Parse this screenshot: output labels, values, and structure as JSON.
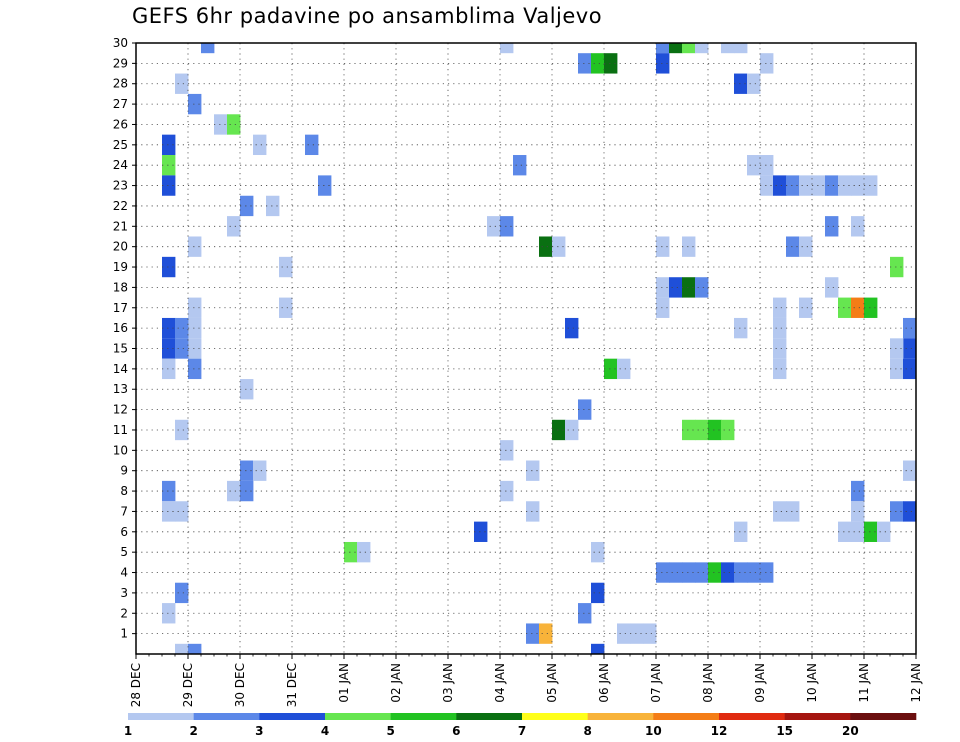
{
  "chart_data": {
    "type": "heatmap",
    "title": "GEFS 6hr padavine po ansamblima Valjevo",
    "xlabel": "",
    "ylabel": "",
    "x_tick_labels": [
      "28 DEC",
      "29 DEC",
      "30 DEC",
      "31 DEC",
      "01 JAN",
      "02 JAN",
      "03 JAN",
      "04 JAN",
      "05 JAN",
      "06 JAN",
      "07 JAN",
      "08 JAN",
      "09 JAN",
      "10 JAN",
      "11 JAN",
      "12 JAN"
    ],
    "x_range_days": [
      0,
      15
    ],
    "y_tick_labels": [
      "1",
      "2",
      "3",
      "4",
      "5",
      "6",
      "7",
      "8",
      "9",
      "10",
      "11",
      "12",
      "13",
      "14",
      "15",
      "16",
      "17",
      "18",
      "19",
      "20",
      "21",
      "22",
      "23",
      "24",
      "25",
      "26",
      "27",
      "28",
      "29",
      "30"
    ],
    "y_range": [
      0,
      30
    ],
    "time_step_hours": 6,
    "grid": true,
    "colorbar": {
      "placement": "bottom",
      "levels": [
        "1",
        "2",
        "3",
        "4",
        "5",
        "6",
        "7",
        "8",
        "10",
        "12",
        "15",
        "20"
      ],
      "colors": [
        "#b4c8f0",
        "#5c88e8",
        "#1f4fd8",
        "#66e650",
        "#22c322",
        "#0a7012",
        "#ffff1a",
        "#f8b33a",
        "#f47d16",
        "#e02a10",
        "#a51510",
        "#6b0f0f"
      ]
    },
    "cells": [
      {
        "t": 5,
        "m": 30,
        "c": 2
      },
      {
        "t": 28,
        "m": 30,
        "c": 1
      },
      {
        "t": 40,
        "m": 30,
        "c": 2
      },
      {
        "t": 41,
        "m": 30,
        "c": 6
      },
      {
        "t": 42,
        "m": 30,
        "c": 4
      },
      {
        "t": 43,
        "m": 30,
        "c": 1
      },
      {
        "t": 45,
        "m": 30,
        "c": 1
      },
      {
        "t": 46,
        "m": 30,
        "c": 1
      },
      {
        "t": 34,
        "m": 29,
        "c": 2
      },
      {
        "t": 35,
        "m": 29,
        "c": 5
      },
      {
        "t": 36,
        "m": 29,
        "c": 6
      },
      {
        "t": 40,
        "m": 29,
        "c": 3
      },
      {
        "t": 48,
        "m": 29,
        "c": 1
      },
      {
        "t": 3,
        "m": 28,
        "c": 1
      },
      {
        "t": 46,
        "m": 28,
        "c": 3
      },
      {
        "t": 47,
        "m": 28,
        "c": 1
      },
      {
        "t": 4,
        "m": 27,
        "c": 2
      },
      {
        "t": 6,
        "m": 26,
        "c": 1
      },
      {
        "t": 7,
        "m": 26,
        "c": 4
      },
      {
        "t": 2,
        "m": 25,
        "c": 3
      },
      {
        "t": 9,
        "m": 25,
        "c": 1
      },
      {
        "t": 13,
        "m": 25,
        "c": 2
      },
      {
        "t": 2,
        "m": 24,
        "c": 4
      },
      {
        "t": 29,
        "m": 24,
        "c": 2
      },
      {
        "t": 47,
        "m": 24,
        "c": 1
      },
      {
        "t": 48,
        "m": 24,
        "c": 1
      },
      {
        "t": 2,
        "m": 23,
        "c": 3
      },
      {
        "t": 14,
        "m": 23,
        "c": 2
      },
      {
        "t": 48,
        "m": 23,
        "c": 1
      },
      {
        "t": 49,
        "m": 23,
        "c": 3
      },
      {
        "t": 50,
        "m": 23,
        "c": 2
      },
      {
        "t": 51,
        "m": 23,
        "c": 1
      },
      {
        "t": 52,
        "m": 23,
        "c": 1
      },
      {
        "t": 53,
        "m": 23,
        "c": 2
      },
      {
        "t": 54,
        "m": 23,
        "c": 1
      },
      {
        "t": 55,
        "m": 23,
        "c": 1
      },
      {
        "t": 56,
        "m": 23,
        "c": 1
      },
      {
        "t": 8,
        "m": 22,
        "c": 2
      },
      {
        "t": 10,
        "m": 22,
        "c": 1
      },
      {
        "t": 7,
        "m": 21,
        "c": 1
      },
      {
        "t": 27,
        "m": 21,
        "c": 1
      },
      {
        "t": 28,
        "m": 21,
        "c": 2
      },
      {
        "t": 53,
        "m": 21,
        "c": 2
      },
      {
        "t": 55,
        "m": 21,
        "c": 1
      },
      {
        "t": 4,
        "m": 20,
        "c": 1
      },
      {
        "t": 31,
        "m": 20,
        "c": 6
      },
      {
        "t": 32,
        "m": 20,
        "c": 1
      },
      {
        "t": 40,
        "m": 20,
        "c": 1
      },
      {
        "t": 42,
        "m": 20,
        "c": 1
      },
      {
        "t": 50,
        "m": 20,
        "c": 2
      },
      {
        "t": 51,
        "m": 20,
        "c": 1
      },
      {
        "t": 2,
        "m": 19,
        "c": 3
      },
      {
        "t": 11,
        "m": 19,
        "c": 1
      },
      {
        "t": 58,
        "m": 19,
        "c": 4
      },
      {
        "t": 40,
        "m": 18,
        "c": 1
      },
      {
        "t": 41,
        "m": 18,
        "c": 3
      },
      {
        "t": 42,
        "m": 18,
        "c": 6
      },
      {
        "t": 43,
        "m": 18,
        "c": 2
      },
      {
        "t": 53,
        "m": 18,
        "c": 1
      },
      {
        "t": 4,
        "m": 17,
        "c": 1
      },
      {
        "t": 11,
        "m": 17,
        "c": 1
      },
      {
        "t": 40,
        "m": 17,
        "c": 1
      },
      {
        "t": 49,
        "m": 17,
        "c": 1
      },
      {
        "t": 51,
        "m": 17,
        "c": 1
      },
      {
        "t": 54,
        "m": 17,
        "c": 4
      },
      {
        "t": 55,
        "m": 17,
        "c": 9
      },
      {
        "t": 56,
        "m": 17,
        "c": 5
      },
      {
        "t": 4,
        "m": 16,
        "c": 1
      },
      {
        "t": 49,
        "m": 16,
        "c": 1
      },
      {
        "t": 46,
        "m": 16,
        "c": 1
      },
      {
        "t": 59,
        "m": 16,
        "c": 2
      },
      {
        "t": 2,
        "m": 16,
        "c": 3
      },
      {
        "t": 3,
        "m": 16,
        "c": 2
      },
      {
        "t": 4,
        "m": 15,
        "c": 1
      },
      {
        "t": 2,
        "m": 15,
        "c": 3
      },
      {
        "t": 3,
        "m": 15,
        "c": 2
      },
      {
        "t": 33,
        "m": 16,
        "c": 3
      },
      {
        "t": 49,
        "m": 15,
        "c": 1
      },
      {
        "t": 59,
        "m": 15,
        "c": 3
      },
      {
        "t": 58,
        "m": 15,
        "c": 1
      },
      {
        "t": 2,
        "m": 14,
        "c": 1
      },
      {
        "t": 4,
        "m": 14,
        "c": 2
      },
      {
        "t": 36,
        "m": 14,
        "c": 5
      },
      {
        "t": 37,
        "m": 14,
        "c": 1
      },
      {
        "t": 49,
        "m": 14,
        "c": 1
      },
      {
        "t": 58,
        "m": 14,
        "c": 1
      },
      {
        "t": 59,
        "m": 14,
        "c": 3
      },
      {
        "t": 8,
        "m": 13,
        "c": 1
      },
      {
        "t": 34,
        "m": 12,
        "c": 2
      },
      {
        "t": 3,
        "m": 11,
        "c": 1
      },
      {
        "t": 32,
        "m": 11,
        "c": 6
      },
      {
        "t": 33,
        "m": 11,
        "c": 1
      },
      {
        "t": 42,
        "m": 11,
        "c": 4
      },
      {
        "t": 43,
        "m": 11,
        "c": 4
      },
      {
        "t": 44,
        "m": 11,
        "c": 5
      },
      {
        "t": 45,
        "m": 11,
        "c": 4
      },
      {
        "t": 28,
        "m": 10,
        "c": 1
      },
      {
        "t": 8,
        "m": 9,
        "c": 2
      },
      {
        "t": 9,
        "m": 9,
        "c": 1
      },
      {
        "t": 30,
        "m": 9,
        "c": 1
      },
      {
        "t": 59,
        "m": 9,
        "c": 1
      },
      {
        "t": 2,
        "m": 8,
        "c": 2
      },
      {
        "t": 7,
        "m": 8,
        "c": 1
      },
      {
        "t": 8,
        "m": 8,
        "c": 2
      },
      {
        "t": 28,
        "m": 8,
        "c": 1
      },
      {
        "t": 55,
        "m": 8,
        "c": 2
      },
      {
        "t": 2,
        "m": 7,
        "c": 1
      },
      {
        "t": 3,
        "m": 7,
        "c": 1
      },
      {
        "t": 30,
        "m": 7,
        "c": 1
      },
      {
        "t": 49,
        "m": 7,
        "c": 1
      },
      {
        "t": 50,
        "m": 7,
        "c": 1
      },
      {
        "t": 55,
        "m": 7,
        "c": 1
      },
      {
        "t": 58,
        "m": 7,
        "c": 2
      },
      {
        "t": 59,
        "m": 7,
        "c": 3
      },
      {
        "t": 26,
        "m": 6,
        "c": 3
      },
      {
        "t": 46,
        "m": 6,
        "c": 1
      },
      {
        "t": 54,
        "m": 6,
        "c": 1
      },
      {
        "t": 55,
        "m": 6,
        "c": 1
      },
      {
        "t": 56,
        "m": 6,
        "c": 5
      },
      {
        "t": 57,
        "m": 6,
        "c": 1
      },
      {
        "t": 16,
        "m": 5,
        "c": 4
      },
      {
        "t": 17,
        "m": 5,
        "c": 1
      },
      {
        "t": 35,
        "m": 5,
        "c": 1
      },
      {
        "t": 40,
        "m": 4,
        "c": 2
      },
      {
        "t": 41,
        "m": 4,
        "c": 2
      },
      {
        "t": 42,
        "m": 4,
        "c": 2
      },
      {
        "t": 43,
        "m": 4,
        "c": 2
      },
      {
        "t": 44,
        "m": 4,
        "c": 5
      },
      {
        "t": 45,
        "m": 4,
        "c": 3
      },
      {
        "t": 46,
        "m": 4,
        "c": 2
      },
      {
        "t": 47,
        "m": 4,
        "c": 2
      },
      {
        "t": 48,
        "m": 4,
        "c": 2
      },
      {
        "t": 3,
        "m": 3,
        "c": 2
      },
      {
        "t": 35,
        "m": 3,
        "c": 3
      },
      {
        "t": 2,
        "m": 2,
        "c": 1
      },
      {
        "t": 34,
        "m": 2,
        "c": 2
      },
      {
        "t": 30,
        "m": 1,
        "c": 2
      },
      {
        "t": 31,
        "m": 1,
        "c": 8
      },
      {
        "t": 37,
        "m": 1,
        "c": 1
      },
      {
        "t": 38,
        "m": 1,
        "c": 1
      },
      {
        "t": 39,
        "m": 1,
        "c": 1
      },
      {
        "t": 3,
        "m": 0,
        "c": 1
      },
      {
        "t": 4,
        "m": 0,
        "c": 2
      },
      {
        "t": 35,
        "m": 0,
        "c": 3
      }
    ]
  }
}
